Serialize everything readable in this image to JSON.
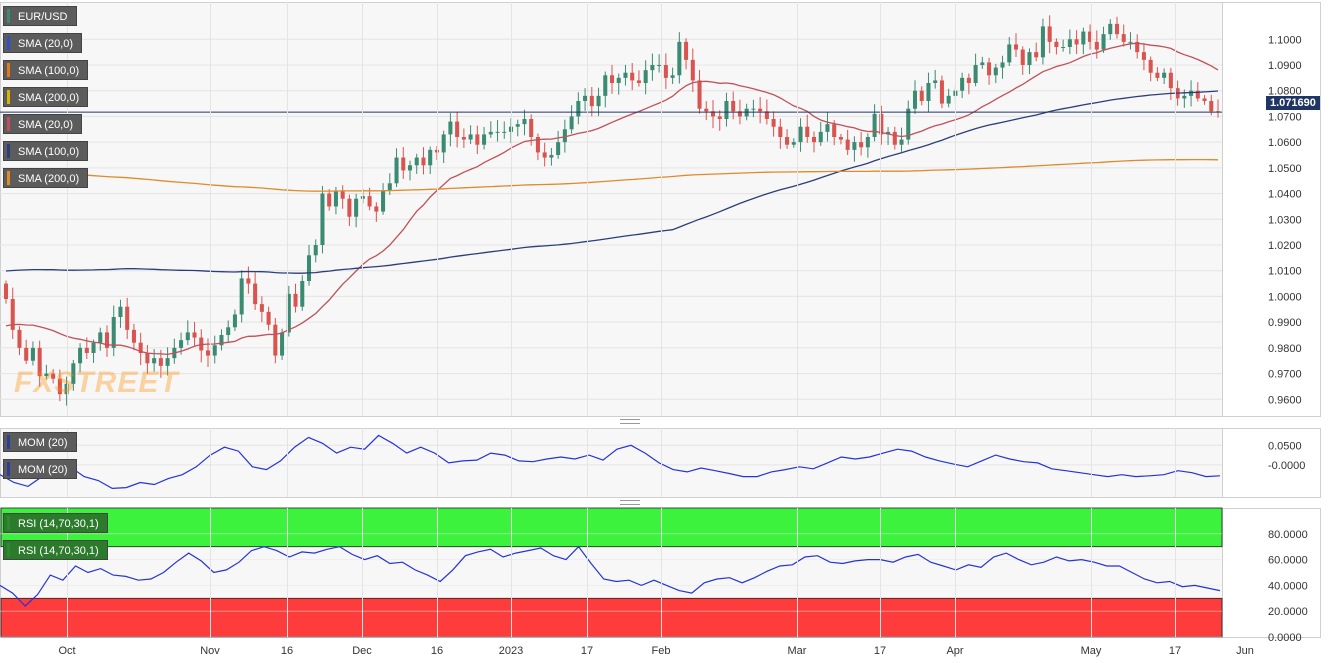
{
  "price_tag": "1.071690",
  "watermark": "FXSTREET",
  "legend": {
    "main": [
      {
        "label": "EUR/USD",
        "color": "#3f8a6c"
      },
      {
        "label": "SMA (20,0)",
        "color": "#2f50c8"
      },
      {
        "label": "SMA (100,0)",
        "color": "#e07b19"
      },
      {
        "label": "SMA (200,0)",
        "color": "#d8b300"
      },
      {
        "label": "SMA (20,0)",
        "color": "#c0505a"
      },
      {
        "label": "SMA (100,0)",
        "color": "#2b3e7a"
      },
      {
        "label": "SMA (200,0)",
        "color": "#e08a2a"
      }
    ],
    "mom": [
      {
        "label": "MOM (20)",
        "color": "#2b3e9a"
      },
      {
        "label": "MOM (20)",
        "color": "#2b3e9a"
      }
    ],
    "rsi": [
      {
        "label": "RSI (14,70,30,1)",
        "color": "#2e8b2e"
      },
      {
        "label": "RSI (14,70,30,1)",
        "color": "#2e8b2e"
      }
    ]
  },
  "colors": {
    "bull": "#3b8a72",
    "bear": "#d9534f",
    "sma20": "#c0505a",
    "sma100": "#2b3e7a",
    "sma200": "#e08a2a",
    "mom": "#2433d6",
    "rsi": "#2433d6",
    "overbought": "#3cf23c",
    "oversold": "#ff3c3c",
    "price_line": "#1f3564"
  },
  "chart_data": [
    {
      "type": "candlestick",
      "title": "EUR/USD",
      "x_ticks": [
        "Oct",
        "Nov",
        "16",
        "Dec",
        "16",
        "2023",
        "17",
        "Feb",
        "Mar",
        "17",
        "Apr",
        "May",
        "17",
        "Jun"
      ],
      "y_ticks": [
        "1.1000",
        "1.0900",
        "1.0800",
        "1.0700",
        "1.0600",
        "1.0500",
        "1.0400",
        "1.0300",
        "1.0200",
        "1.0100",
        "1.0000",
        "0.9900",
        "0.9800",
        "0.9700",
        "0.9600"
      ],
      "ylim": [
        0.9535,
        1.1145
      ],
      "last_price": 1.07169,
      "closes": [
        0.999,
        0.987,
        0.98,
        0.975,
        0.98,
        0.969,
        0.97,
        0.968,
        0.962,
        0.966,
        0.974,
        0.98,
        0.978,
        0.982,
        0.986,
        0.98,
        0.992,
        0.996,
        0.987,
        0.982,
        0.978,
        0.974,
        0.976,
        0.973,
        0.976,
        0.98,
        0.983,
        0.986,
        0.984,
        0.979,
        0.977,
        0.981,
        0.985,
        0.988,
        0.993,
        1.007,
        1.005,
        0.997,
        0.994,
        0.989,
        0.977,
        0.986,
        1.001,
        0.996,
        1.006,
        1.016,
        1.02,
        1.04,
        1.035,
        1.041,
        1.038,
        1.031,
        1.038,
        1.039,
        1.035,
        1.033,
        1.041,
        1.044,
        1.054,
        1.049,
        1.051,
        1.054,
        1.051,
        1.057,
        1.056,
        1.063,
        1.068,
        1.062,
        1.061,
        1.063,
        1.059,
        1.063,
        1.064,
        1.064,
        1.064,
        1.066,
        1.067,
        1.069,
        1.062,
        1.056,
        1.054,
        1.055,
        1.06,
        1.065,
        1.07,
        1.076,
        1.078,
        1.074,
        1.078,
        1.086,
        1.083,
        1.085,
        1.087,
        1.084,
        1.083,
        1.088,
        1.09,
        1.09,
        1.085,
        1.086,
        1.099,
        1.092,
        1.084,
        1.073,
        1.072,
        1.07,
        1.069,
        1.076,
        1.072,
        1.07,
        1.073,
        1.073,
        1.072,
        1.069,
        1.066,
        1.062,
        1.059,
        1.06,
        1.066,
        1.062,
        1.06,
        1.064,
        1.067,
        1.062,
        1.061,
        1.057,
        1.06,
        1.058,
        1.062,
        1.071,
        1.063,
        1.064,
        1.059,
        1.061,
        1.073,
        1.08,
        1.076,
        1.083,
        1.084,
        1.075,
        1.078,
        1.08,
        1.085,
        1.083,
        1.09,
        1.091,
        1.086,
        1.089,
        1.091,
        1.098,
        1.096,
        1.09,
        1.095,
        1.093,
        1.105,
        1.099,
        1.097,
        1.097,
        1.1,
        1.098,
        1.103,
        1.099,
        1.096,
        1.102,
        1.106,
        1.102,
        1.099,
        1.099,
        1.095,
        1.092,
        1.087,
        1.085,
        1.087,
        1.081,
        1.077,
        1.078,
        1.08,
        1.077,
        1.076,
        1.072,
        1.0717
      ]
    },
    {
      "type": "line",
      "title": "MOM (20)",
      "y_ticks": [
        "0.0500",
        "-0.0000"
      ],
      "ylim": [
        -0.082,
        0.094
      ],
      "values": [
        -0.025,
        -0.045,
        -0.055,
        -0.03,
        -0.018,
        -0.005,
        -0.03,
        -0.04,
        -0.06,
        -0.058,
        -0.045,
        -0.05,
        -0.035,
        -0.025,
        -0.005,
        0.025,
        0.045,
        0.035,
        -0.005,
        -0.012,
        0.01,
        0.045,
        0.07,
        0.055,
        0.03,
        0.045,
        0.04,
        0.075,
        0.055,
        0.03,
        0.045,
        0.03,
        0.005,
        0.01,
        0.012,
        0.03,
        0.025,
        0.01,
        0.008,
        0.015,
        0.02,
        0.015,
        0.025,
        0.012,
        0.04,
        0.05,
        0.03,
        0.005,
        -0.012,
        -0.018,
        -0.008,
        -0.015,
        -0.022,
        -0.03,
        -0.03,
        -0.018,
        -0.012,
        -0.005,
        -0.01,
        0.005,
        0.02,
        0.015,
        0.02,
        0.03,
        0.04,
        0.035,
        0.02,
        0.01,
        0.002,
        -0.005,
        0.01,
        0.025,
        0.015,
        0.008,
        0.005,
        -0.01,
        -0.015,
        -0.02,
        -0.025,
        -0.03,
        -0.025,
        -0.03,
        -0.028,
        -0.025,
        -0.015,
        -0.02,
        -0.03,
        -0.028
      ],
      "series_name": "MOM (20)"
    },
    {
      "type": "line",
      "title": "RSI (14,70,30,1)",
      "y_ticks": [
        "80.0000",
        "60.0000",
        "40.0000",
        "20.0000",
        "0.0000"
      ],
      "ylim": [
        0,
        100
      ],
      "overbought": 70,
      "oversold": 30,
      "values": [
        40,
        34,
        24,
        33,
        48,
        44,
        55,
        50,
        53,
        48,
        47,
        44,
        45,
        50,
        58,
        65,
        59,
        50,
        52,
        58,
        67,
        70,
        67,
        62,
        66,
        65,
        68,
        70,
        64,
        60,
        63,
        57,
        58,
        52,
        48,
        43,
        52,
        63,
        66,
        68,
        62,
        65,
        67,
        69,
        63,
        60,
        70,
        57,
        45,
        43,
        44,
        40,
        44,
        40,
        36,
        34,
        42,
        45,
        46,
        42,
        46,
        51,
        55,
        56,
        62,
        63,
        58,
        57,
        59,
        60,
        60,
        58,
        62,
        64,
        58,
        55,
        52,
        56,
        54,
        62,
        65,
        60,
        56,
        58,
        62,
        59,
        60,
        58,
        55,
        55,
        50,
        45,
        42,
        43,
        39,
        40,
        38,
        36
      ]
    }
  ]
}
